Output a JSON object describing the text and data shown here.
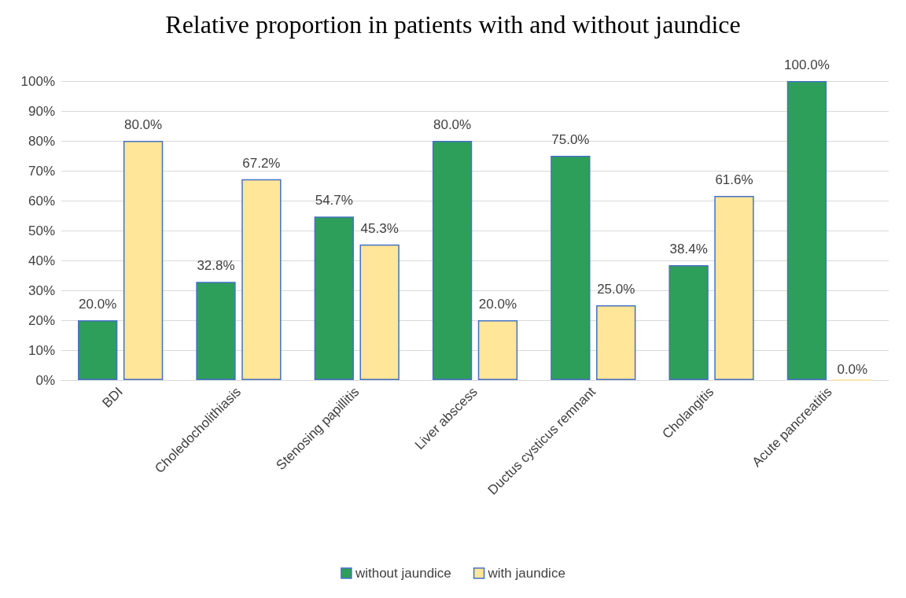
{
  "chart_data": {
    "type": "bar",
    "title": "Relative proportion in patients with and without jaundice",
    "categories": [
      "BDI",
      "Choledocholithiasis",
      "Stenosing papillitis",
      "Liver abscess",
      "Ductus cysticus remnant",
      "Cholangitis",
      "Acute pancreatitis"
    ],
    "series": [
      {
        "name": "without jaundice",
        "color": "#2e9e5b",
        "values": [
          20.0,
          32.8,
          54.7,
          80.0,
          75.0,
          38.4,
          100.0
        ],
        "value_labels": [
          "20.0%",
          "32.8%",
          "54.7%",
          "80.0%",
          "75.0%",
          "38.4%",
          "100.0%"
        ]
      },
      {
        "name": "with jaundice",
        "color": "#ffe699",
        "values": [
          80.0,
          67.2,
          45.3,
          20.0,
          25.0,
          61.6,
          0.0
        ],
        "value_labels": [
          "80.0%",
          "67.2%",
          "45.3%",
          "20.0%",
          "25.0%",
          "61.6%",
          "0.0%"
        ]
      }
    ],
    "ylim": [
      0,
      100
    ],
    "yticks": [
      {
        "value": 0,
        "label": "0%"
      },
      {
        "value": 10,
        "label": "10%"
      },
      {
        "value": 20,
        "label": "20%"
      },
      {
        "value": 30,
        "label": "30%"
      },
      {
        "value": 40,
        "label": "40%"
      },
      {
        "value": 50,
        "label": "50%"
      },
      {
        "value": 60,
        "label": "60%"
      },
      {
        "value": 70,
        "label": "70%"
      },
      {
        "value": 80,
        "label": "80%"
      },
      {
        "value": 90,
        "label": "90%"
      },
      {
        "value": 100,
        "label": "100%"
      }
    ],
    "grid": "y",
    "legend": "bottom"
  }
}
